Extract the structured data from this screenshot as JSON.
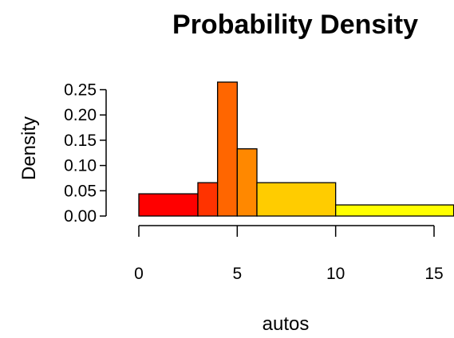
{
  "chart_data": {
    "type": "bar",
    "title": "Probability Density",
    "xlabel": "autos",
    "ylabel": "Density",
    "bins": [
      {
        "x0": 0,
        "x1": 3,
        "density": 0.044,
        "color": "#ff0000"
      },
      {
        "x0": 3,
        "x1": 4,
        "density": 0.066,
        "color": "#ff3300"
      },
      {
        "x0": 4,
        "x1": 5,
        "density": 0.265,
        "color": "#ff6600"
      },
      {
        "x0": 5,
        "x1": 6,
        "density": 0.133,
        "color": "#ff8800"
      },
      {
        "x0": 6,
        "x1": 10,
        "density": 0.066,
        "color": "#ffcc00"
      },
      {
        "x0": 10,
        "x1": 16,
        "density": 0.022,
        "color": "#ffff00"
      }
    ],
    "xlim": [
      0,
      16
    ],
    "ylim": [
      0,
      0.265
    ],
    "x_ticks": [
      0,
      5,
      10,
      15
    ],
    "x_tick_labels": [
      "0",
      "5",
      "10",
      "15"
    ],
    "y_ticks": [
      0,
      0.05,
      0.1,
      0.15,
      0.2,
      0.25
    ],
    "y_tick_labels": [
      "0.00",
      "0.05",
      "0.10",
      "0.15",
      "0.20",
      "0.25"
    ],
    "grid": false,
    "legend": "none"
  }
}
